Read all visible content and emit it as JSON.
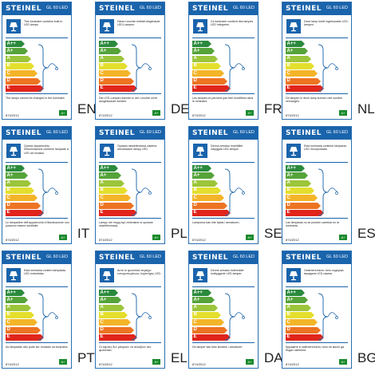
{
  "brand": "STEINEL",
  "model": "GL 60 LED",
  "classes": [
    "A++",
    "A+",
    "A",
    "B",
    "C",
    "D",
    "E"
  ],
  "class_colors": [
    "#2a8a3c",
    "#55a33a",
    "#9cc53a",
    "#e4de2e",
    "#f4b428",
    "#ec7422",
    "#e1251b"
  ],
  "included_class": "A+",
  "regulation": "874/2012",
  "labels": [
    {
      "code": "EN",
      "text_top": "This luminaire contains built-in LED lamps.",
      "text_bottom": "The lamps cannot be changed in the luminaire."
    },
    {
      "code": "DE",
      "text_top": "Diese Leuchte enthält eingebaute LED-Lampen.",
      "text_bottom": "Die LED-Lampen können in der Leuchte nicht ausgetauscht werden."
    },
    {
      "code": "FR",
      "text_top": "Ce luminaire contient des lampes LED intégrées.",
      "text_bottom": "Les lampes ne peuvent pas être modifiées dans le luminaire."
    },
    {
      "code": "NL",
      "text_top": "Deze lamp heeft ingebouwde LED-lampen.",
      "text_bottom": "De lampen in deze lamp kunnen niet worden vervangen."
    },
    {
      "code": "IT",
      "text_top": "Questo apparecchio d'illuminazione contiene lampade a LED ad incasso.",
      "text_bottom": "Le lampadine dell'apparecchio d'illuminazione non possono essere sostituite."
    },
    {
      "code": "PL",
      "text_top": "Oprawa oświetleniowa zawiera wbudowane lampy LED.",
      "text_bottom": "Lampy nie mogą być zmieniane w oprawie oświetleniowej."
    },
    {
      "code": "SE",
      "text_top": "Denna armatur innehåller inbyggda LED-lampor.",
      "text_bottom": "Lamporna kan inte bytas i armaturen."
    },
    {
      "code": "ES",
      "text_top": "Esta luminaria contiene lámparas LED incorporadas.",
      "text_bottom": "Las lámparas no se pueden cambiar en la luminaria."
    },
    {
      "code": "PT",
      "text_top": "Esta luminária contém lâmpadas LED embutidas.",
      "text_bottom": "As lâmpadas não pode ser mudado na luminária."
    },
    {
      "code": "EL",
      "text_top": "Αυτό το φωτιστικό περιέχει ενσωματωμένους λαμπτήρες LED.",
      "text_bottom": "Οι λάμπες δεν μπορούν να αλλάξουν στο φωτιστικό."
    },
    {
      "code": "DA",
      "text_top": "Denne armatur indeholder indbyggede LED-lamper.",
      "text_bottom": "De lamper kan ikke ændres i armaturet."
    },
    {
      "code": "BG",
      "text_top": "Осветителното тяло съдържа вградени LED лампи.",
      "text_bottom": "Крушките в осветителното тяло не могат да бъдат сменени."
    }
  ]
}
